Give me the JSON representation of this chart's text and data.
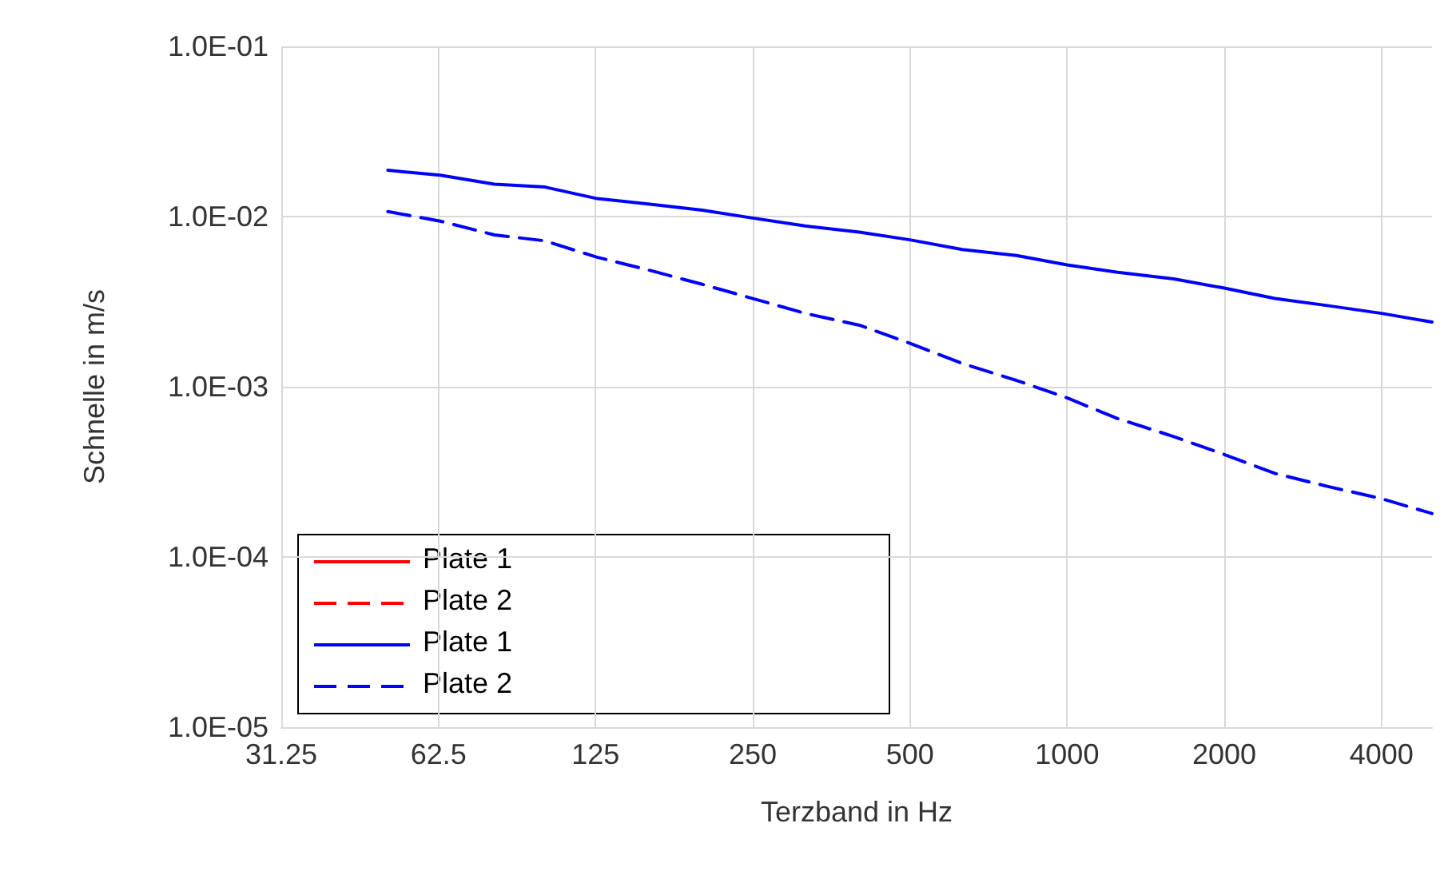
{
  "chart_data": {
    "type": "line",
    "xlabel": "Terzband in Hz",
    "ylabel": "Schnelle in m/s",
    "x": [
      50,
      63,
      80,
      100,
      125,
      160,
      200,
      250,
      315,
      400,
      500,
      630,
      800,
      1000,
      1250,
      1600,
      2000,
      2500,
      3150,
      4000,
      5000
    ],
    "series": [
      {
        "name": "Plate 1",
        "color": "#ff0000",
        "line_style": "solid",
        "values": [
          null,
          null,
          null,
          null,
          null,
          null,
          null,
          null,
          null,
          null,
          null,
          null,
          null,
          null,
          null,
          null,
          null,
          null,
          null,
          null,
          null
        ]
      },
      {
        "name": "Plate 2",
        "color": "#ff0000",
        "line_style": "dashed",
        "values": [
          null,
          null,
          null,
          null,
          null,
          null,
          null,
          null,
          null,
          null,
          null,
          null,
          null,
          null,
          null,
          null,
          null,
          null,
          null,
          null,
          null
        ]
      },
      {
        "name": "Plate 1",
        "color": "#0000ff",
        "line_style": "solid",
        "values": [
          0.0187,
          0.0175,
          0.0155,
          0.0149,
          0.0128,
          0.0118,
          0.0109,
          0.0098,
          0.0088,
          0.0081,
          0.0073,
          0.0064,
          0.0059,
          0.0052,
          0.0047,
          0.0043,
          0.0038,
          0.0033,
          0.003,
          0.0027,
          0.0024
        ]
      },
      {
        "name": "Plate 2",
        "color": "#0000ff",
        "line_style": "dashed",
        "values": [
          0.0107,
          0.0094,
          0.0078,
          0.0072,
          0.0058,
          0.0048,
          0.004,
          0.0033,
          0.0027,
          0.0023,
          0.0018,
          0.00137,
          0.00109,
          0.00086,
          0.00065,
          0.00051,
          0.0004,
          0.00031,
          0.00026,
          0.00022,
          0.00018
        ]
      }
    ],
    "log": "xy",
    "xlim": [
      31.25,
      5000
    ],
    "xticks": [
      31.25,
      62.5,
      125,
      250,
      500,
      1000,
      2000,
      4000
    ],
    "ylim": [
      1e-05,
      0.1
    ],
    "yticks": [
      {
        "value": 1e-05,
        "label": "1.0E-05"
      },
      {
        "value": 0.0001,
        "label": "1.0E-04"
      },
      {
        "value": 0.001,
        "label": "1.0E-03"
      },
      {
        "value": 0.01,
        "label": "1.0E-02"
      },
      {
        "value": 0.1,
        "label": "1.0E-01"
      }
    ],
    "grid": true,
    "legend": "bottom left",
    "marker": "none"
  }
}
